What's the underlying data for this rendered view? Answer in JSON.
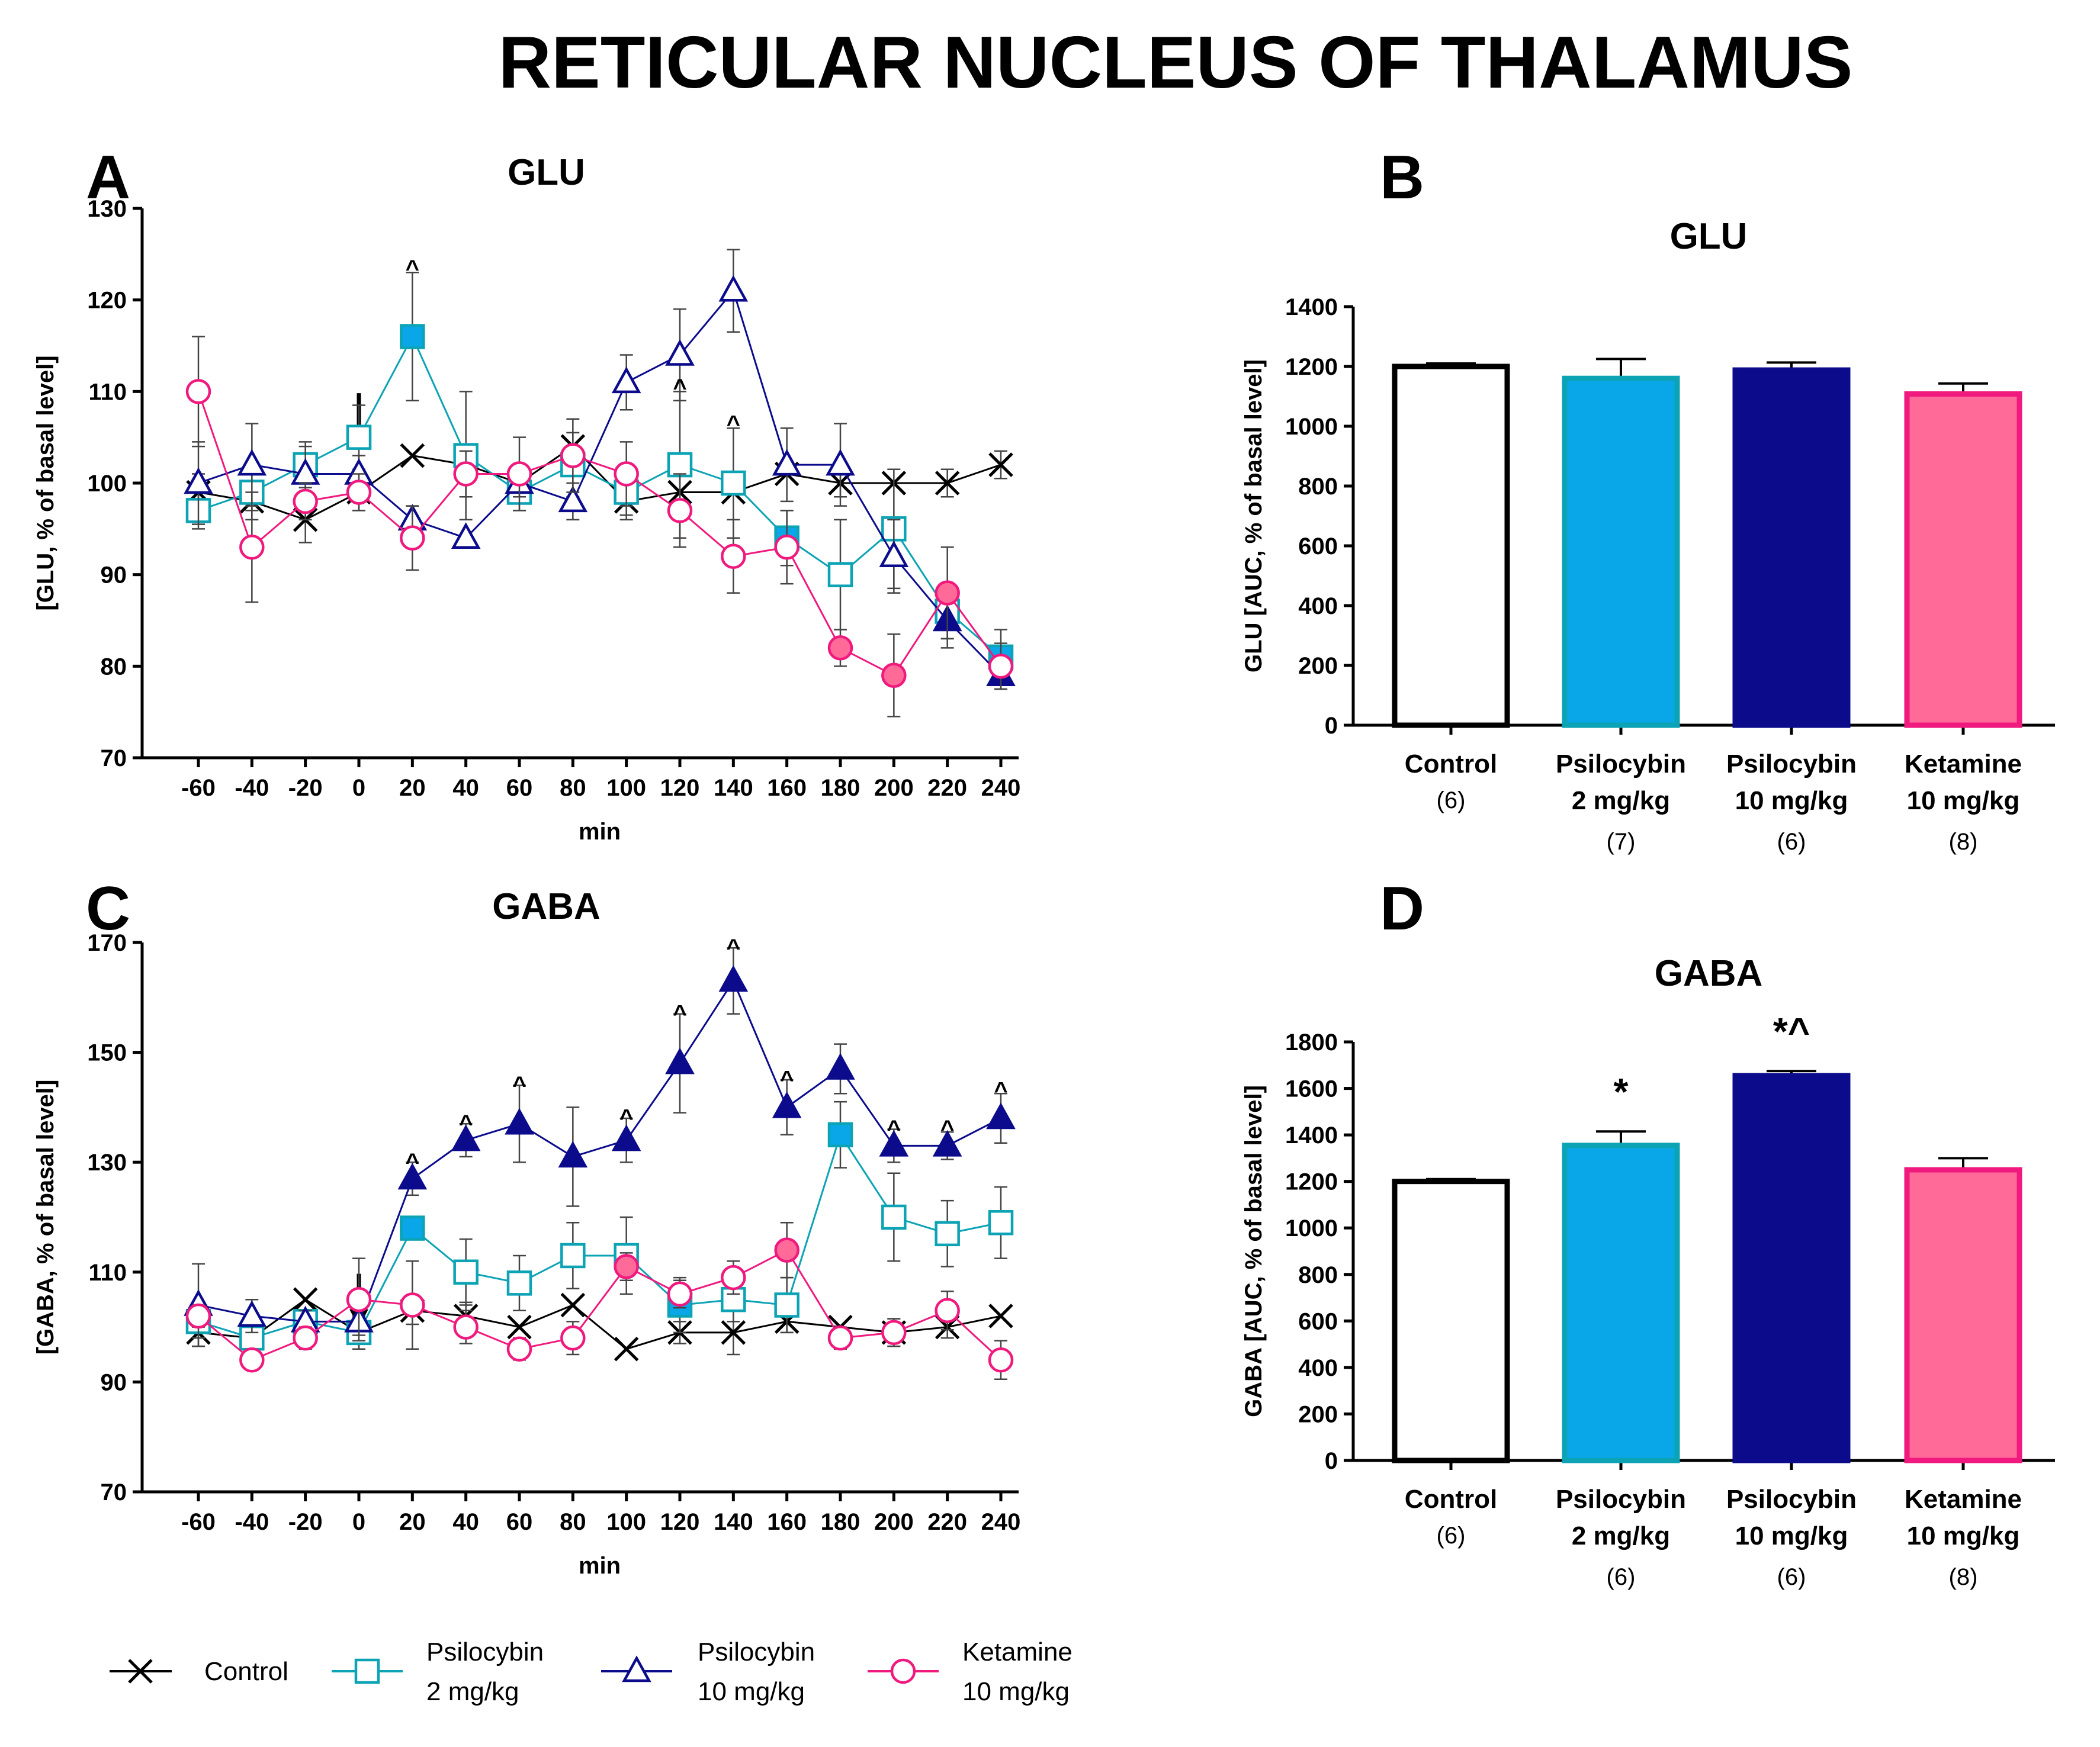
{
  "figure": {
    "title": "RETICULAR NUCLEUS OF THALAMUS"
  },
  "panels": {
    "a": "A",
    "b": "B",
    "c": "C",
    "d": "D"
  },
  "colors": {
    "control": "#000000",
    "psilo2": "#0CA3B5",
    "psilo10": "#0B0B8C",
    "ketamine": "#F0197E",
    "psilo2_fill": "#0AA7E8",
    "ketamine_fill": "#FF6A98"
  },
  "legend": {
    "control": "Control",
    "psilo2_line1": "Psilocybin",
    "psilo2_line2": "2 mg/kg",
    "psilo10_line1": "Psilocybin",
    "psilo10_line2": "10 mg/kg",
    "ket_line1": "Ketamine",
    "ket_line2": "10 mg/kg"
  },
  "chart_data": [
    {
      "id": "A",
      "type": "line",
      "title": "GLU",
      "xlabel": "min",
      "ylabel": "[GLU, % of basal level]",
      "x": [
        -60,
        -40,
        -20,
        0,
        20,
        40,
        60,
        80,
        100,
        120,
        140,
        160,
        180,
        200,
        220,
        240
      ],
      "x_tick_labels": [
        "-60",
        "-40",
        "-20",
        "0",
        "20",
        "40",
        "60",
        "80",
        "100",
        "120",
        "140",
        "160",
        "180",
        "200",
        "220",
        "240"
      ],
      "ylim": [
        70,
        130
      ],
      "yticks": [
        70,
        80,
        90,
        100,
        110,
        120,
        130
      ],
      "y_tick_labels": [
        "70",
        "80",
        "90",
        "100",
        "110",
        "120",
        "130"
      ],
      "injection_arrow_x": 0,
      "series": [
        {
          "name": "Control",
          "key": "control",
          "marker": "x",
          "values": [
            99,
            98,
            96,
            99,
            103,
            102,
            100,
            104,
            98,
            99,
            99,
            101,
            100,
            100,
            100,
            102
          ],
          "errors": [
            2,
            2,
            2.5,
            2,
            0,
            0,
            0,
            0,
            1.5,
            0,
            0,
            0,
            1.5,
            0,
            1.5,
            1.5
          ],
          "filled": []
        },
        {
          "name": "Psilocybin 2 mg/kg",
          "key": "psilo2",
          "marker": "square",
          "values": [
            97,
            99,
            102,
            105,
            116,
            103,
            99,
            102,
            99,
            102,
            100,
            94,
            90,
            95,
            86,
            81
          ],
          "errors": [
            2,
            2,
            2.5,
            3.5,
            7,
            7,
            2,
            3.5,
            3,
            8,
            6,
            3,
            6,
            6.5,
            3,
            3
          ],
          "filled": [
            4,
            11,
            15
          ]
        },
        {
          "name": "Psilocybin 10 mg/kg",
          "key": "psilo10",
          "marker": "triangle",
          "values": [
            100,
            102,
            101,
            101,
            96,
            94,
            100,
            98,
            111,
            114,
            121,
            102,
            102,
            92,
            85,
            79
          ],
          "errors": [
            4.5,
            4.5,
            3,
            2,
            1.5,
            0,
            1.5,
            2,
            3,
            5,
            4.5,
            4,
            4.5,
            4,
            3,
            1.5
          ],
          "filled": [
            14,
            15
          ]
        },
        {
          "name": "Ketamine 10 mg/kg",
          "key": "ketamine",
          "marker": "circle",
          "values": [
            110,
            93,
            98,
            99,
            94,
            101,
            101,
            103,
            101,
            97,
            92,
            93,
            82,
            79,
            88,
            80
          ],
          "errors": [
            6,
            6,
            2,
            2,
            3.5,
            2.5,
            4,
            4,
            3.5,
            4,
            4,
            4,
            2,
            4.5,
            5,
            2.5
          ],
          "filled": [
            12,
            13,
            14
          ]
        }
      ],
      "annotations": [
        {
          "x": 20,
          "y": 124,
          "text": "^"
        },
        {
          "x": 120,
          "y": 111,
          "text": "^"
        },
        {
          "x": 140,
          "y": 107,
          "text": "^"
        }
      ]
    },
    {
      "id": "B",
      "type": "bar",
      "title": "GLU",
      "ylabel": "GLU [AUC, % of basal level]",
      "categories": [
        "Control",
        "Psilocybin 2 mg/kg",
        "Psilocybin 10 mg/kg",
        "Ketamine 10 mg/kg"
      ],
      "category_lines": [
        [
          "Control"
        ],
        [
          "Psilocybin",
          "2 mg/kg"
        ],
        [
          "Psilocybin",
          "10 mg/kg"
        ],
        [
          "Ketamine",
          "10 mg/kg"
        ]
      ],
      "n_labels": [
        "(6)",
        "(7)",
        "(6)",
        "(8)"
      ],
      "values": [
        1200,
        1160,
        1188,
        1108
      ],
      "errors": [
        10,
        65,
        25,
        35
      ],
      "ylim": [
        0,
        1400
      ],
      "yticks": [
        0,
        200,
        400,
        600,
        800,
        1000,
        1200,
        1400
      ],
      "y_tick_labels": [
        "0",
        "200",
        "400",
        "600",
        "800",
        "1000",
        "1200",
        "1400"
      ],
      "annotations": []
    },
    {
      "id": "C",
      "type": "line",
      "title": "GABA",
      "xlabel": "min",
      "ylabel": "[GABA, % of basal level]",
      "x": [
        -60,
        -40,
        -20,
        0,
        20,
        40,
        60,
        80,
        100,
        120,
        140,
        160,
        180,
        200,
        220,
        240
      ],
      "x_tick_labels": [
        "-60",
        "-40",
        "-20",
        "0",
        "20",
        "40",
        "60",
        "80",
        "100",
        "120",
        "140",
        "160",
        "180",
        "200",
        "220",
        "240"
      ],
      "ylim": [
        70,
        170
      ],
      "yticks": [
        70,
        90,
        110,
        130,
        150,
        170
      ],
      "y_tick_labels": [
        "70",
        "90",
        "110",
        "130",
        "150",
        "170"
      ],
      "injection_arrow_x": 0,
      "series": [
        {
          "name": "Control",
          "key": "control",
          "marker": "x",
          "values": [
            99,
            98,
            105,
            99,
            103,
            102,
            100,
            104,
            96,
            99,
            99,
            101,
            100,
            99,
            100,
            102
          ],
          "errors": [
            2.5,
            1.5,
            0,
            3,
            2.5,
            2.5,
            0,
            0,
            0,
            2,
            4,
            2,
            0,
            2.5,
            2,
            0
          ],
          "filled": []
        },
        {
          "name": "Psilocybin 2 mg/kg",
          "key": "psilo2",
          "marker": "square",
          "values": [
            101,
            98,
            101,
            99,
            118,
            110,
            108,
            113,
            113,
            104,
            105,
            104,
            135,
            120,
            117,
            119
          ],
          "errors": [
            3,
            3,
            2,
            3,
            2,
            6,
            5,
            6,
            7,
            5,
            4,
            5,
            6,
            8,
            6,
            6.5
          ],
          "filled": [
            4,
            9,
            12
          ]
        },
        {
          "name": "Psilocybin 10 mg/kg",
          "key": "psilo10",
          "marker": "triangle",
          "values": [
            104,
            102,
            101,
            101,
            127,
            134,
            137,
            131,
            134,
            148,
            163,
            140,
            147,
            133,
            133,
            138
          ],
          "errors": [
            7.5,
            3,
            2,
            2.5,
            3,
            3,
            7,
            9,
            4,
            9,
            6,
            5,
            4.5,
            3,
            2.5,
            4.5
          ],
          "filled": [
            4,
            5,
            6,
            7,
            8,
            9,
            10,
            11,
            12,
            13,
            14,
            15
          ]
        },
        {
          "name": "Ketamine 10 mg/kg",
          "key": "ketamine",
          "marker": "circle",
          "values": [
            102,
            94,
            98,
            105,
            104,
            100,
            96,
            98,
            111,
            106,
            109,
            114,
            98,
            99,
            103,
            94
          ],
          "errors": [
            2,
            1.5,
            2,
            7.5,
            8,
            3,
            2,
            3,
            2.5,
            2.5,
            3,
            5,
            2,
            2.5,
            3.5,
            3.5
          ],
          "filled": [
            8,
            11
          ]
        }
      ],
      "annotations": [
        {
          "x": 20,
          "y": 131,
          "text": "^"
        },
        {
          "x": 40,
          "y": 138,
          "text": "^"
        },
        {
          "x": 60,
          "y": 145,
          "text": "^"
        },
        {
          "x": 100,
          "y": 139,
          "text": "^"
        },
        {
          "x": 120,
          "y": 158,
          "text": "^"
        },
        {
          "x": 140,
          "y": 170,
          "text": "^"
        },
        {
          "x": 160,
          "y": 146,
          "text": "^"
        },
        {
          "x": 200,
          "y": 137,
          "text": "^"
        },
        {
          "x": 220,
          "y": 137,
          "text": "^"
        },
        {
          "x": 240,
          "y": 144,
          "text": "^"
        }
      ]
    },
    {
      "id": "D",
      "type": "bar",
      "title": "GABA",
      "ylabel": "GABA [AUC, % of basal level]",
      "categories": [
        "Control",
        "Psilocybin 2 mg/kg",
        "Psilocybin 10 mg/kg",
        "Ketamine 10 mg/kg"
      ],
      "category_lines": [
        [
          "Control"
        ],
        [
          "Psilocybin",
          "2 mg/kg"
        ],
        [
          "Psilocybin",
          "10 mg/kg"
        ],
        [
          "Ketamine",
          "10 mg/kg"
        ]
      ],
      "n_labels": [
        "(6)",
        "(6)",
        "(6)",
        "(8)"
      ],
      "values": [
        1200,
        1355,
        1655,
        1250
      ],
      "errors": [
        10,
        60,
        20,
        50
      ],
      "ylim": [
        0,
        1800
      ],
      "yticks": [
        0,
        200,
        400,
        600,
        800,
        1000,
        1200,
        1400,
        1600,
        1800
      ],
      "y_tick_labels": [
        "0",
        "200",
        "400",
        "600",
        "800",
        "1000",
        "1200",
        "1400",
        "1600",
        "1800"
      ],
      "annotations": [
        {
          "bar": 1,
          "text": "*"
        },
        {
          "bar": 2,
          "text": "*^"
        }
      ]
    }
  ]
}
